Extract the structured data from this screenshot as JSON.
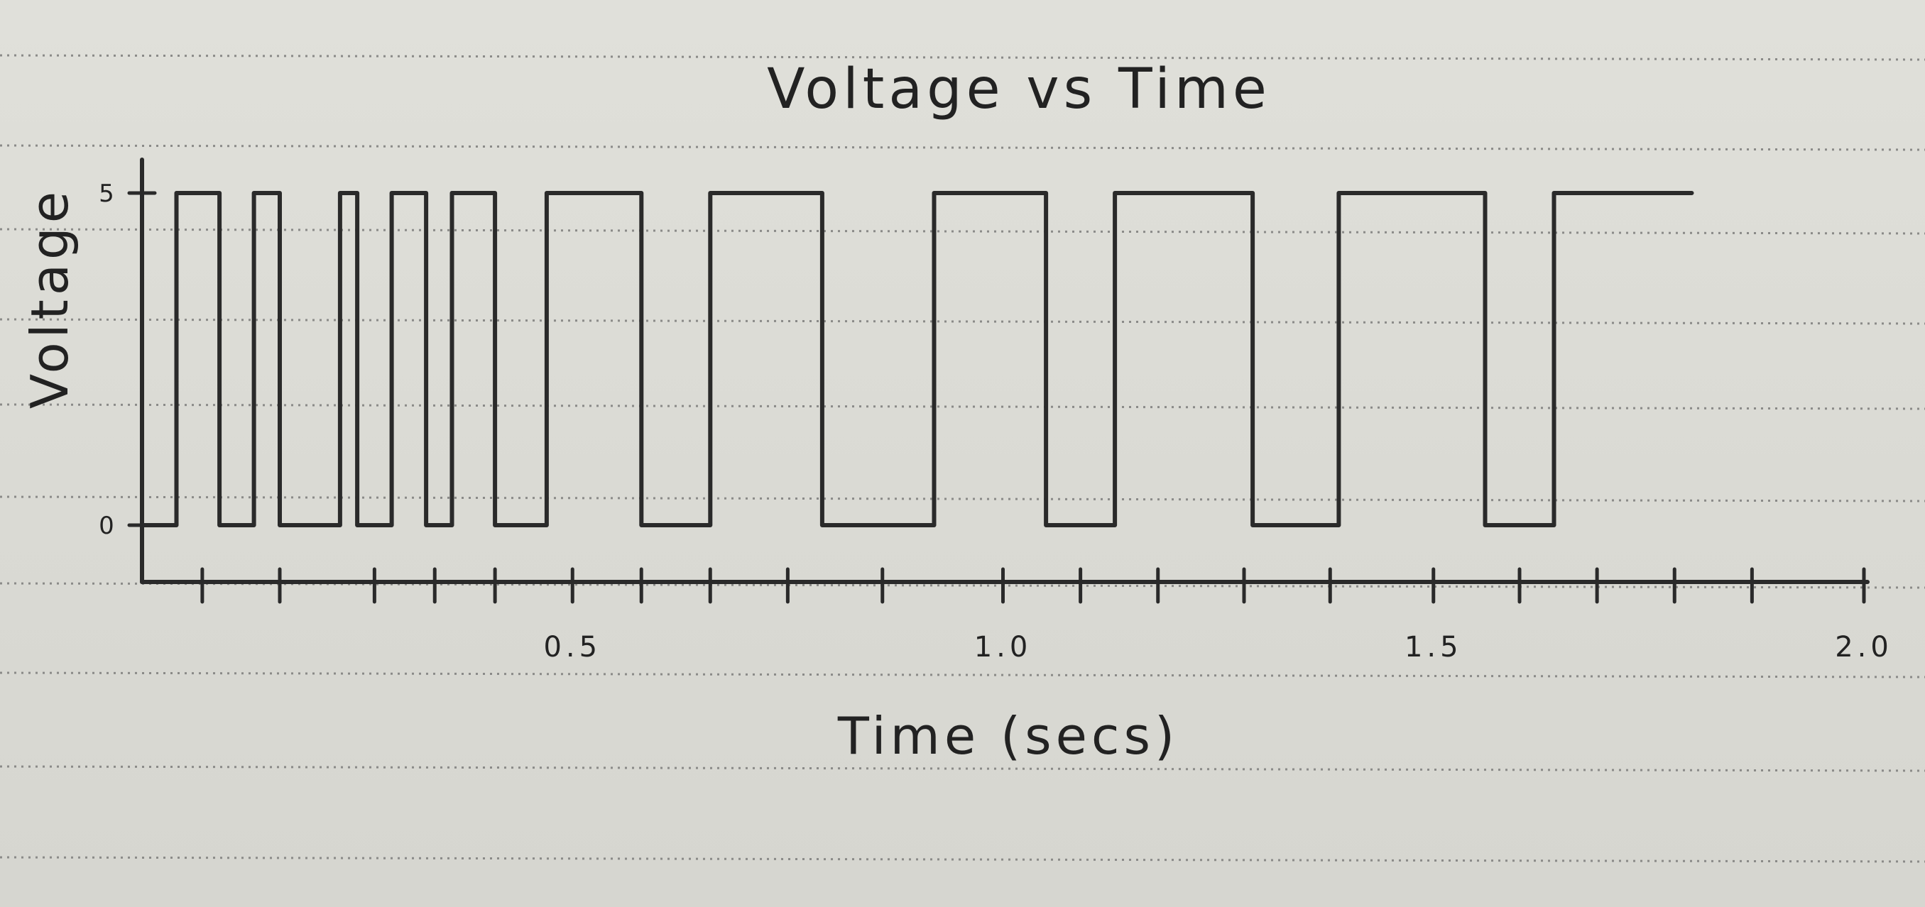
{
  "chart_data": {
    "type": "line",
    "title": "Voltage vs Time",
    "xlabel": "Time (secs)",
    "ylabel": "Voltage",
    "xlim": [
      0,
      2.0
    ],
    "ylim": [
      0,
      5
    ],
    "x_tick_labels": [
      {
        "value": 0.5,
        "label": "0.5"
      },
      {
        "value": 1.0,
        "label": "1.0"
      },
      {
        "value": 1.5,
        "label": "1.5"
      },
      {
        "value": 2.0,
        "label": "2.0"
      }
    ],
    "y_tick_labels": [
      {
        "value": 0,
        "label": "0"
      },
      {
        "value": 5,
        "label": "5"
      }
    ],
    "x_minor_ticks": [
      0.07,
      0.16,
      0.27,
      0.34,
      0.41,
      0.5,
      0.58,
      0.66,
      0.75,
      0.86,
      1.0,
      1.09,
      1.18,
      1.28,
      1.38,
      1.5,
      1.6,
      1.69,
      1.78,
      1.87,
      2.0
    ],
    "grid": false,
    "legend": "none",
    "series": [
      {
        "color": "#2a2a2a",
        "x": [
          0.0,
          0.04,
          0.04,
          0.09,
          0.09,
          0.13,
          0.13,
          0.16,
          0.16,
          0.23,
          0.23,
          0.25,
          0.25,
          0.29,
          0.29,
          0.33,
          0.33,
          0.36,
          0.36,
          0.41,
          0.41,
          0.47,
          0.47,
          0.58,
          0.58,
          0.66,
          0.66,
          0.79,
          0.79,
          0.92,
          0.92,
          1.05,
          1.05,
          1.13,
          1.13,
          1.29,
          1.29,
          1.39,
          1.39,
          1.56,
          1.56,
          1.64,
          1.64,
          1.8
        ],
        "y": [
          0,
          0,
          5,
          5,
          0,
          0,
          5,
          5,
          0,
          0,
          5,
          5,
          0,
          0,
          5,
          5,
          0,
          0,
          5,
          5,
          0,
          0,
          5,
          5,
          0,
          0,
          5,
          5,
          0,
          0,
          5,
          5,
          0,
          0,
          5,
          5,
          0,
          0,
          5,
          5,
          0,
          0,
          5,
          5
        ]
      }
    ]
  }
}
